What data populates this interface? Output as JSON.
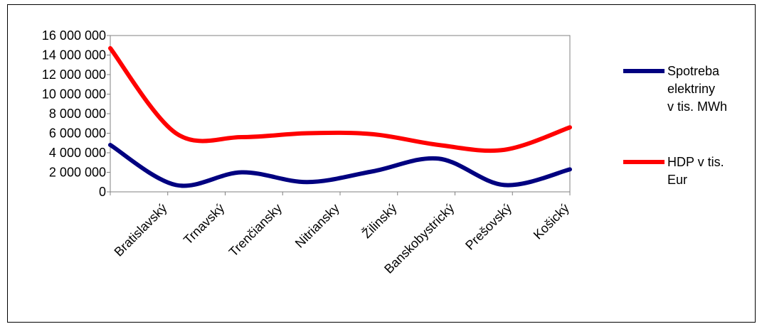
{
  "chart_data": {
    "type": "line",
    "categories": [
      "Bratislavský",
      "Trnavský",
      "Trenčiansky",
      "Nitriansky",
      "Žilinský",
      "Banskobystrický",
      "Prešovský",
      "Košický"
    ],
    "y_ticks": [
      "0",
      "2 000 000",
      "4 000 000",
      "6 000 000",
      "8 000 000",
      "10 000 000",
      "12 000 000",
      "14 000 000",
      "16 000 000"
    ],
    "ylim": [
      0,
      16000000
    ],
    "legend_position": "right",
    "series": [
      {
        "name": "Spotreba elektriny v tis. MWh",
        "color": "#000080",
        "values": [
          4800000,
          700000,
          2000000,
          1000000,
          2100000,
          3400000,
          700000,
          2300000
        ]
      },
      {
        "name": "HDP v tis. Eur",
        "color": "#ff0000",
        "values": [
          14700000,
          6000000,
          5600000,
          6000000,
          5900000,
          4800000,
          4300000,
          6600000
        ]
      }
    ]
  }
}
